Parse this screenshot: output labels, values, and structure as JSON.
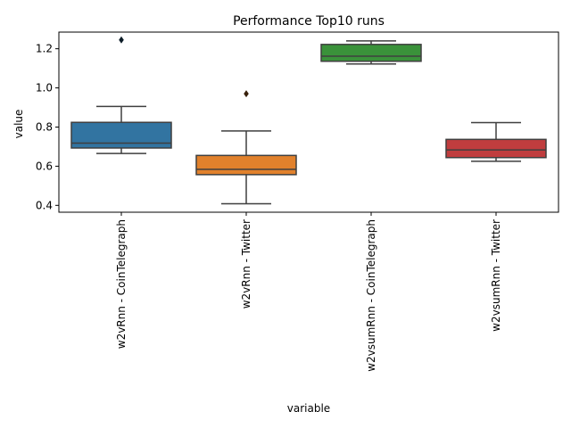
{
  "chart_data": {
    "type": "box",
    "title": "Performance Top10 runs",
    "xlabel": "variable",
    "ylabel": "value",
    "ylim": [
      0.365,
      1.285
    ],
    "yticks": [
      0.4,
      0.6,
      0.8,
      1.0,
      1.2
    ],
    "ytick_labels": [
      "0.4",
      "0.6",
      "0.8",
      "1.0",
      "1.2"
    ],
    "grid": false,
    "categories": [
      "w2vRnn - CoinTelegraph",
      "w2vRnn - Twitter",
      "w2vsumRnn - CoinTelegraph",
      "w2vsumRnn - Twitter"
    ],
    "boxes": [
      {
        "whisker_low": 0.665,
        "q1": 0.693,
        "median": 0.718,
        "q3": 0.824,
        "whisker_high": 0.905,
        "outliers": [
          1.245
        ],
        "color": "#3274a1"
      },
      {
        "whisker_low": 0.408,
        "q1": 0.557,
        "median": 0.584,
        "q3": 0.655,
        "whisker_high": 0.78,
        "outliers": [
          0.97
        ],
        "color": "#e1812c"
      },
      {
        "whisker_low": 1.122,
        "q1": 1.136,
        "median": 1.162,
        "q3": 1.222,
        "whisker_high": 1.24,
        "outliers": [],
        "color": "#3a923a"
      },
      {
        "whisker_low": 0.625,
        "q1": 0.644,
        "median": 0.683,
        "q3": 0.737,
        "whisker_high": 0.823,
        "outliers": [],
        "color": "#c03d3e"
      }
    ]
  }
}
